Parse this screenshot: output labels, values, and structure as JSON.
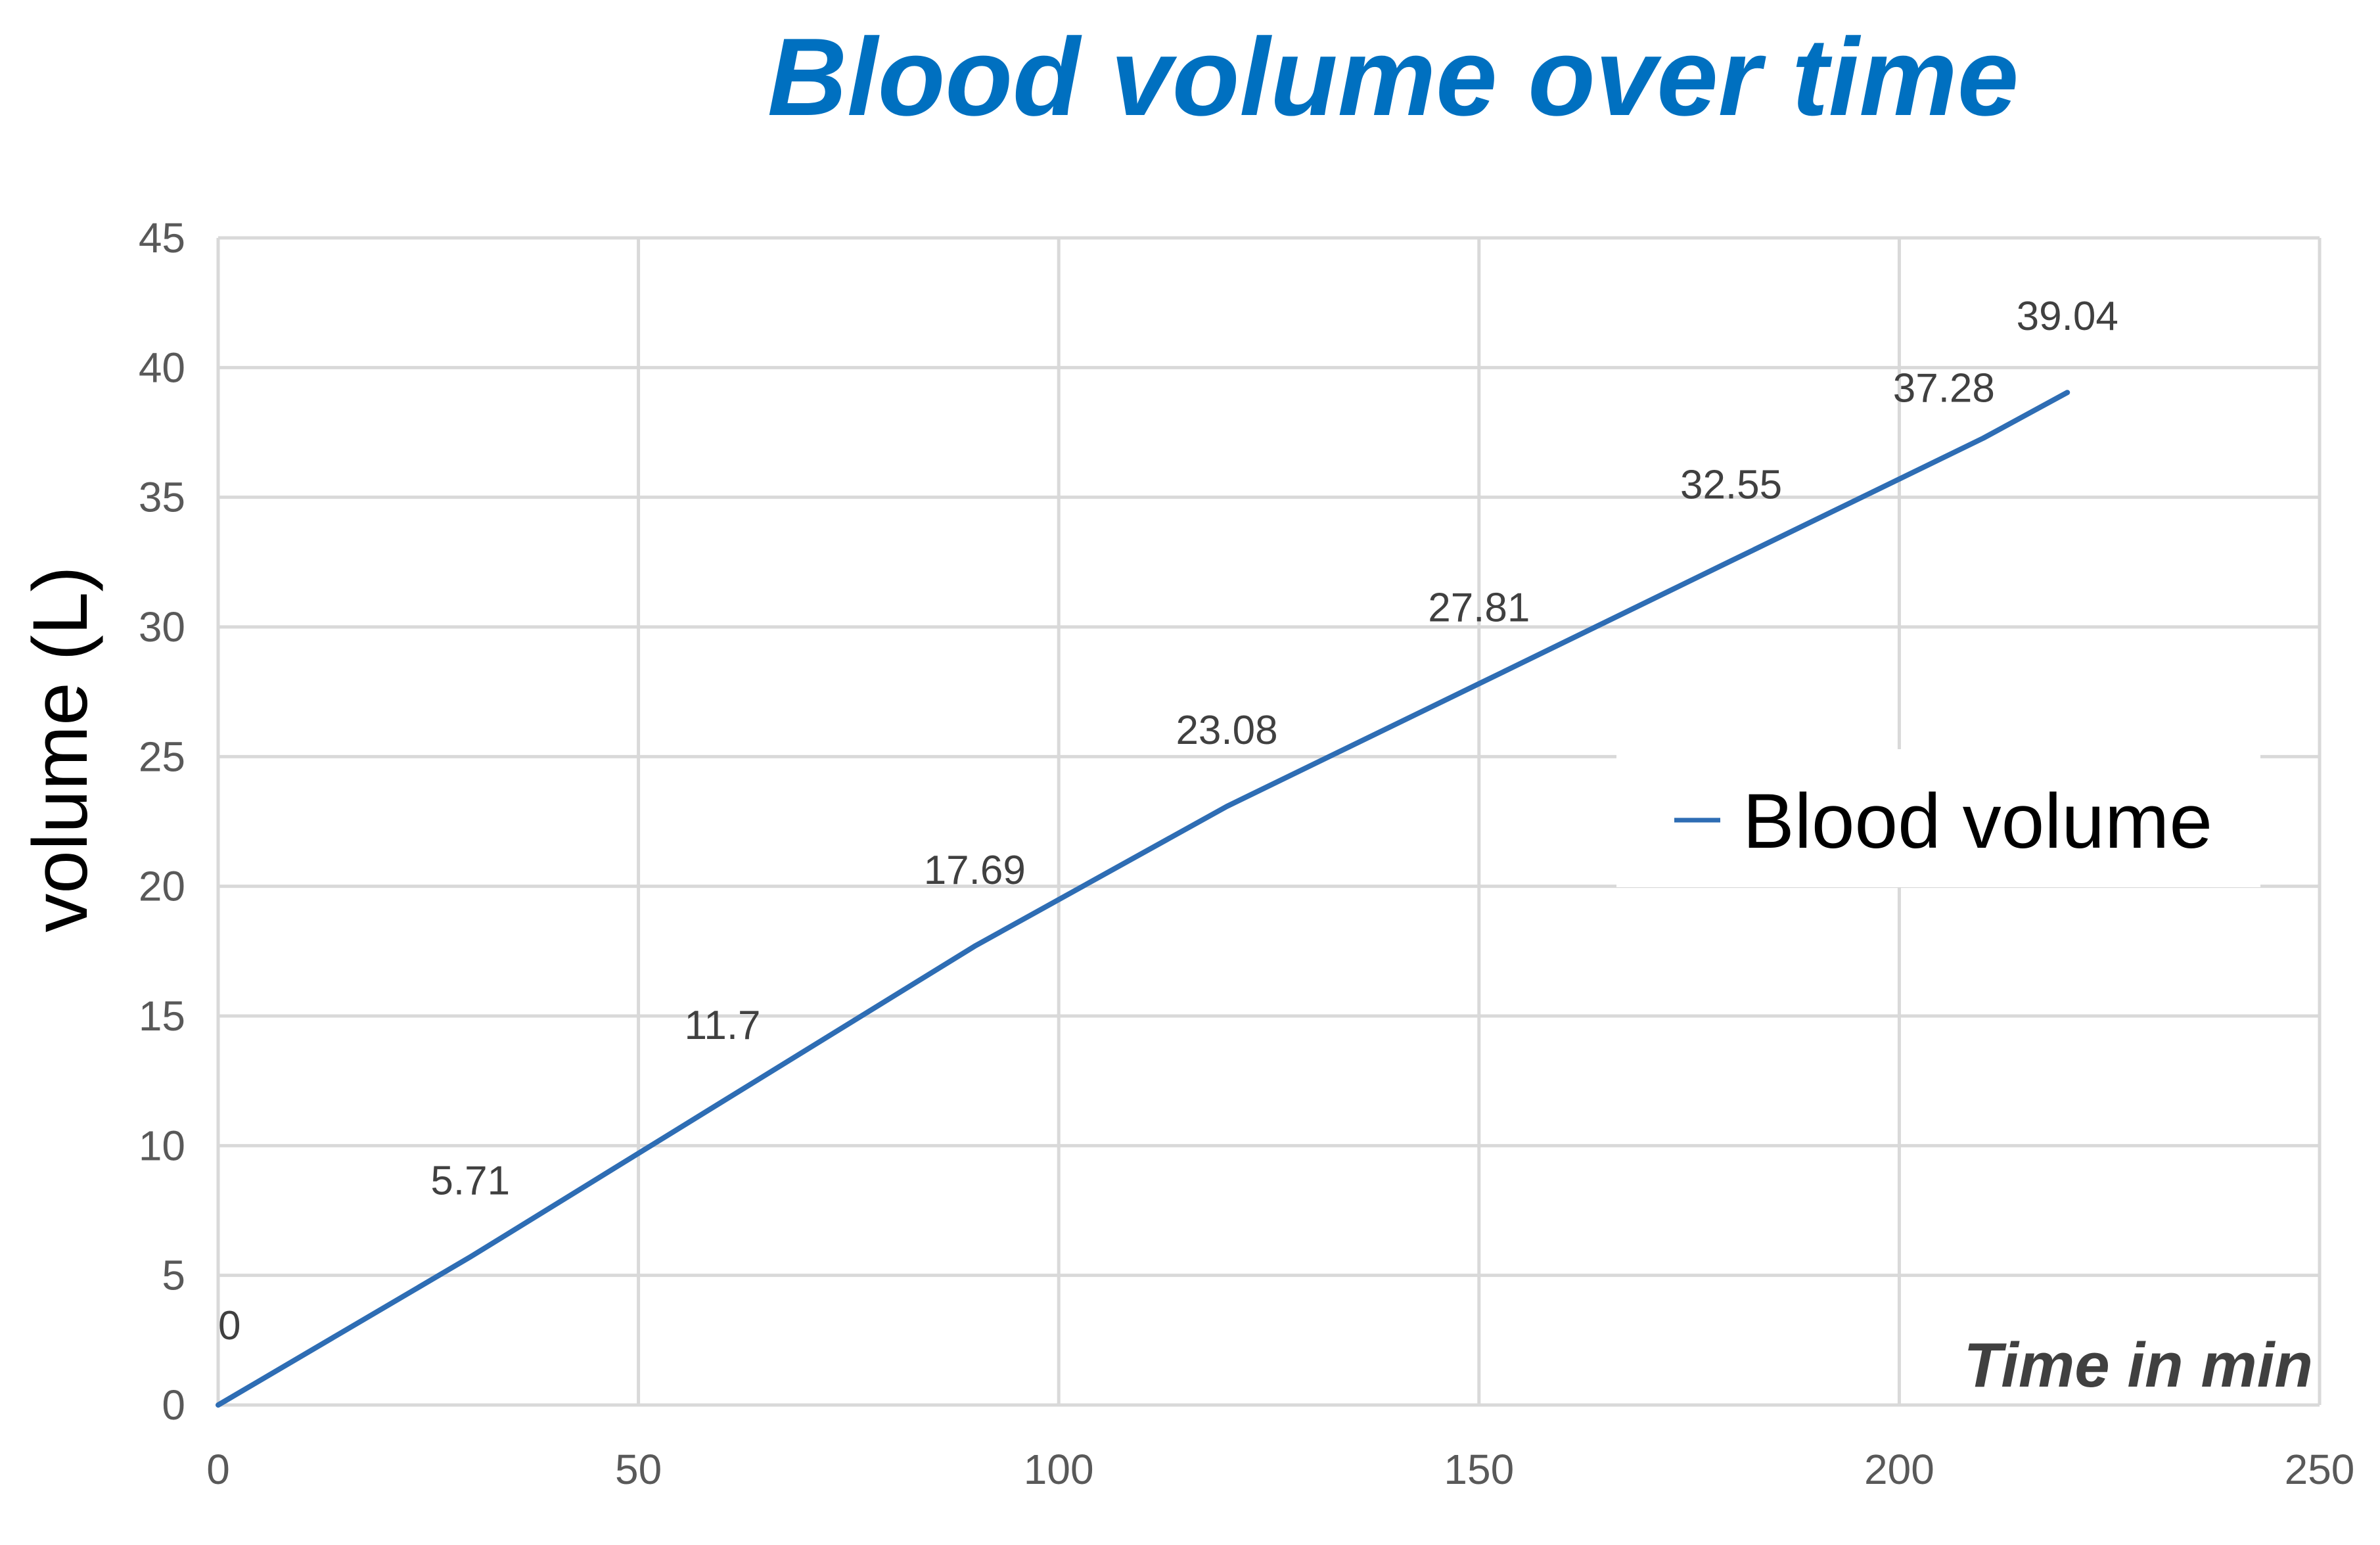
{
  "chart_data": {
    "type": "line",
    "title": "Blood volume over time",
    "xlabel": "Time in min",
    "ylabel": "volume (L)",
    "xlim": [
      0,
      250
    ],
    "ylim": [
      0,
      45
    ],
    "x_ticks": [
      "0",
      "50",
      "100",
      "150",
      "200",
      "250"
    ],
    "y_ticks": [
      "0",
      "5",
      "10",
      "15",
      "20",
      "25",
      "30",
      "35",
      "40",
      "45"
    ],
    "grid": true,
    "legend": {
      "position": "right",
      "entries": [
        "Blood volume"
      ]
    },
    "series": [
      {
        "name": "Blood volume",
        "color": "#2e6db4",
        "x": [
          0,
          30,
          60,
          90,
          120,
          150,
          180,
          210,
          220
        ],
        "y": [
          0,
          5.71,
          11.7,
          17.69,
          23.08,
          27.81,
          32.55,
          37.28,
          39.04
        ],
        "labels": [
          "0",
          "5.71",
          "11.7",
          "17.69",
          "23.08",
          "27.81",
          "32.55",
          "37.28",
          "39.04"
        ]
      }
    ]
  },
  "colors": {
    "title": "#0070c0",
    "line": "#2e6db4",
    "grid": "#d9d9d9",
    "tick_text": "#595959"
  }
}
